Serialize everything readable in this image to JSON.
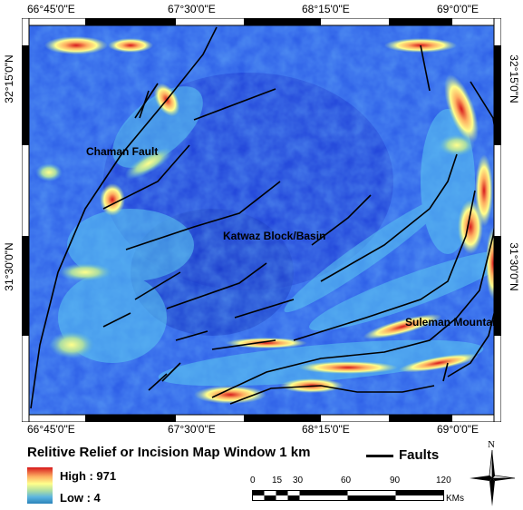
{
  "map": {
    "top_coords": [
      "66°45'0\"E",
      "67°30'0\"E",
      "68°15'0\"E",
      "69°0'0\"E"
    ],
    "bottom_coords": [
      "66°45'0\"E",
      "67°30'0\"E",
      "68°15'0\"E",
      "69°0'0\"E"
    ],
    "left_coords": [
      "32°15'0\"N",
      "31°30'0\"N"
    ],
    "right_coords": [
      "32°15'0\"N",
      "31°30'0\"N"
    ],
    "labels": {
      "chaman": "Chaman Fault",
      "katwaz": "Katwaz Block/Basin",
      "suleman": "Suleman Mountain"
    }
  },
  "legend": {
    "title": "Relitive Relief or Incision Map Window 1 km",
    "high": "High : 971",
    "low": "Low : 4",
    "faults": "Faults",
    "colors": [
      "#d7191c",
      "#fdae61",
      "#ffff8c",
      "#abdda4",
      "#2b83ba",
      "#1f3fe0"
    ]
  },
  "scale": {
    "ticks": [
      "0",
      "15",
      "30",
      "60",
      "90",
      "120"
    ],
    "unit": "KMs"
  },
  "north": {
    "label": "N"
  }
}
